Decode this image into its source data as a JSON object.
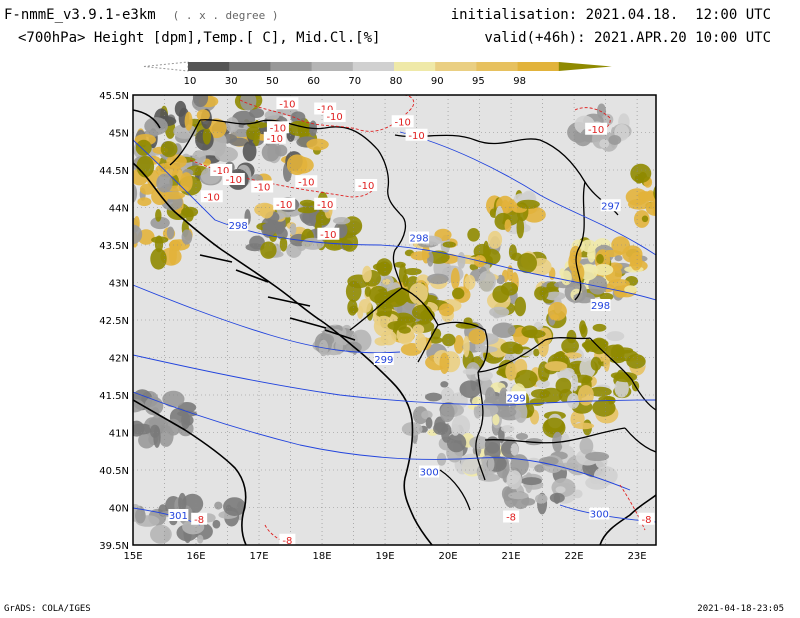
{
  "header": {
    "model": "F-nmmE_v3.9.1-e3km",
    "unit_note": "( . x . degree )",
    "fields": "<700hPa> Height [dpm],Temp.[ C], Mid.Cl.[%]",
    "init": "initialisation: 2021.04.18.  12:00 UTC",
    "valid": "valid(+46h): 2021.APR.20 10:00 UTC"
  },
  "colorbar": {
    "labels": [
      "10",
      "30",
      "50",
      "60",
      "70",
      "80",
      "90",
      "95",
      "98"
    ],
    "colors": [
      "#555555",
      "#7a7a7a",
      "#999999",
      "#b5b5b5",
      "#d0d0d0",
      "#efe9a8",
      "#eacf82",
      "#e7c15f",
      "#e2b33b",
      "#8f8a00"
    ]
  },
  "map": {
    "lat_labels": [
      "45.5N",
      "45N",
      "44.5N",
      "44N",
      "43.5N",
      "43N",
      "42.5N",
      "42N",
      "41.5N",
      "41N",
      "40.5N",
      "40N",
      "39.5N"
    ],
    "lon_labels": [
      "15E",
      "16E",
      "17E",
      "18E",
      "19E",
      "20E",
      "21E",
      "22E",
      "23E"
    ],
    "height_labels": [
      {
        "text": "298",
        "lon": 16.67,
        "lat": 43.77
      },
      {
        "text": "298",
        "lon": 19.54,
        "lat": 43.6
      },
      {
        "text": "297",
        "lon": 22.58,
        "lat": 44.03
      },
      {
        "text": "298",
        "lon": 22.42,
        "lat": 42.7
      },
      {
        "text": "299",
        "lon": 18.98,
        "lat": 41.98
      },
      {
        "text": "299",
        "lon": 21.08,
        "lat": 41.47
      },
      {
        "text": "300",
        "lon": 19.7,
        "lat": 40.48
      },
      {
        "text": "301",
        "lon": 15.72,
        "lat": 39.9
      },
      {
        "text": "300",
        "lon": 22.4,
        "lat": 39.92
      }
    ],
    "temp_labels": [
      {
        "text": "-10",
        "lon": 17.45,
        "lat": 45.39
      },
      {
        "text": "-10",
        "lon": 18.05,
        "lat": 45.32
      },
      {
        "text": "-10",
        "lon": 18.2,
        "lat": 45.22
      },
      {
        "text": "-10",
        "lon": 17.3,
        "lat": 45.07
      },
      {
        "text": "-10",
        "lon": 19.28,
        "lat": 45.15
      },
      {
        "text": "-10",
        "lon": 19.5,
        "lat": 44.97
      },
      {
        "text": "-10",
        "lon": 17.25,
        "lat": 44.93
      },
      {
        "text": "-10",
        "lon": 16.4,
        "lat": 44.5
      },
      {
        "text": "-10",
        "lon": 16.6,
        "lat": 44.38
      },
      {
        "text": "-10",
        "lon": 17.05,
        "lat": 44.28
      },
      {
        "text": "-10",
        "lon": 17.75,
        "lat": 44.35
      },
      {
        "text": "-10",
        "lon": 18.7,
        "lat": 44.3
      },
      {
        "text": "-10",
        "lon": 16.25,
        "lat": 44.15
      },
      {
        "text": "-10",
        "lon": 17.4,
        "lat": 44.05
      },
      {
        "text": "-10",
        "lon": 18.05,
        "lat": 44.05
      },
      {
        "text": "-10",
        "lon": 18.1,
        "lat": 43.65
      },
      {
        "text": "-10",
        "lon": 22.35,
        "lat": 45.05
      },
      {
        "text": "-8",
        "lon": 16.05,
        "lat": 39.85
      },
      {
        "text": "-8",
        "lon": 17.45,
        "lat": 39.57
      },
      {
        "text": "-8",
        "lon": 21.0,
        "lat": 39.88
      },
      {
        "text": "-8",
        "lon": 23.15,
        "lat": 39.85
      }
    ]
  },
  "footer": {
    "left": "GrADS: COLA/IGES",
    "right": "2021-04-18-23:05"
  }
}
